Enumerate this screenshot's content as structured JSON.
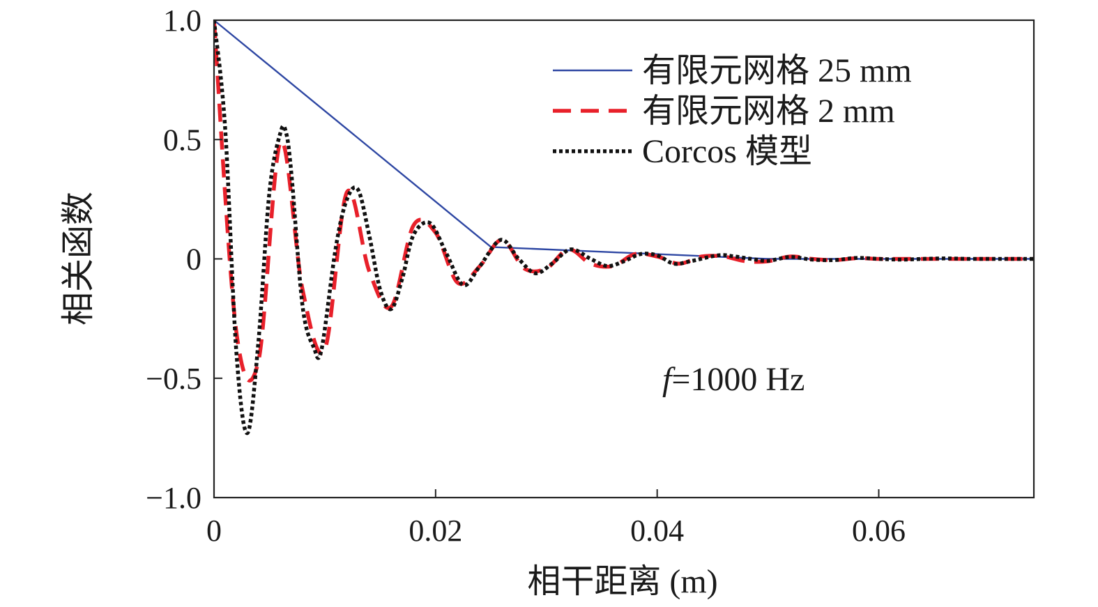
{
  "chart_data": {
    "type": "line",
    "xlabel": "相干距离 (m)",
    "ylabel": "相关函数",
    "xlim": [
      0,
      0.074
    ],
    "ylim": [
      -1.0,
      1.0
    ],
    "xticks": [
      0,
      0.02,
      0.04,
      0.06
    ],
    "xtick_labels": [
      "0",
      "0.02",
      "0.04",
      "0.06"
    ],
    "yticks": [
      -1.0,
      -0.5,
      0,
      0.5,
      1.0
    ],
    "ytick_labels": [
      "−1.0",
      "−0.5",
      "0",
      "0.5",
      "1.0"
    ],
    "grid": false,
    "legend_position": "top-right",
    "annotation": {
      "prefix": "f",
      "text": "=1000 Hz"
    },
    "series": [
      {
        "name": "有限元网格 25 mm",
        "style": "solid",
        "color": "#2e47a3",
        "x": [
          0,
          0.025,
          0.05,
          0.075
        ],
        "y": [
          1.0,
          0.05,
          0.0,
          0.0
        ]
      },
      {
        "name": "有限元网格 2 mm",
        "style": "dashed",
        "color": "#e8202a",
        "x": [
          0,
          0.002,
          0.004,
          0.006,
          0.008,
          0.01,
          0.012,
          0.014,
          0.016,
          0.018,
          0.02,
          0.022,
          0.024,
          0.026,
          0.028,
          0.03,
          0.032,
          0.034,
          0.036,
          0.038,
          0.04,
          0.042,
          0.044,
          0.046,
          0.048,
          0.05,
          0.052,
          0.054,
          0.056,
          0.058,
          0.06,
          0.062,
          0.064,
          0.066,
          0.068,
          0.07,
          0.072,
          0.074
        ],
        "y": [
          1.0,
          -0.3,
          -0.43,
          0.49,
          -0.13,
          -0.38,
          0.28,
          -0.05,
          -0.2,
          0.14,
          0.11,
          -0.1,
          -0.03,
          0.08,
          -0.04,
          -0.04,
          0.04,
          -0.02,
          -0.03,
          0.02,
          0.01,
          -0.02,
          0.01,
          0.01,
          -0.01,
          -0.01,
          0.01,
          0.0,
          -0.005,
          0.003,
          0.0,
          0.0,
          0.0,
          0.0,
          0.0,
          0.0,
          0.0,
          0.0
        ]
      },
      {
        "name": "Corcos 模型",
        "style": "dotted",
        "color": "#111111",
        "x": [
          0,
          0.001,
          0.002,
          0.003,
          0.004,
          0.005,
          0.006,
          0.0065,
          0.007,
          0.008,
          0.009,
          0.0097,
          0.011,
          0.012,
          0.013,
          0.014,
          0.015,
          0.016,
          0.017,
          0.018,
          0.0195,
          0.021,
          0.0225,
          0.024,
          0.0259,
          0.0275,
          0.029,
          0.0305,
          0.0322,
          0.034,
          0.0355,
          0.037,
          0.0385,
          0.04,
          0.0415,
          0.043,
          0.0455,
          0.047,
          0.0485,
          0.05,
          0.052,
          0.054,
          0.056,
          0.058,
          0.06,
          0.062,
          0.064,
          0.066,
          0.068,
          0.07,
          0.072,
          0.074
        ],
        "y": [
          1.0,
          0.55,
          -0.38,
          -0.73,
          -0.35,
          0.28,
          0.53,
          0.53,
          0.35,
          -0.2,
          -0.37,
          -0.38,
          0.05,
          0.25,
          0.29,
          0.1,
          -0.13,
          -0.21,
          -0.08,
          0.1,
          0.15,
          0.02,
          -0.11,
          -0.03,
          0.08,
          0.0,
          -0.06,
          -0.02,
          0.04,
          0.0,
          -0.03,
          -0.01,
          0.02,
          0.015,
          -0.02,
          -0.01,
          0.015,
          0.01,
          0.0,
          -0.008,
          0.008,
          -0.003,
          -0.005,
          0.004,
          0.0,
          -0.003,
          0.0,
          0.002,
          0.0,
          0.0,
          0.0,
          0.0
        ]
      }
    ]
  }
}
